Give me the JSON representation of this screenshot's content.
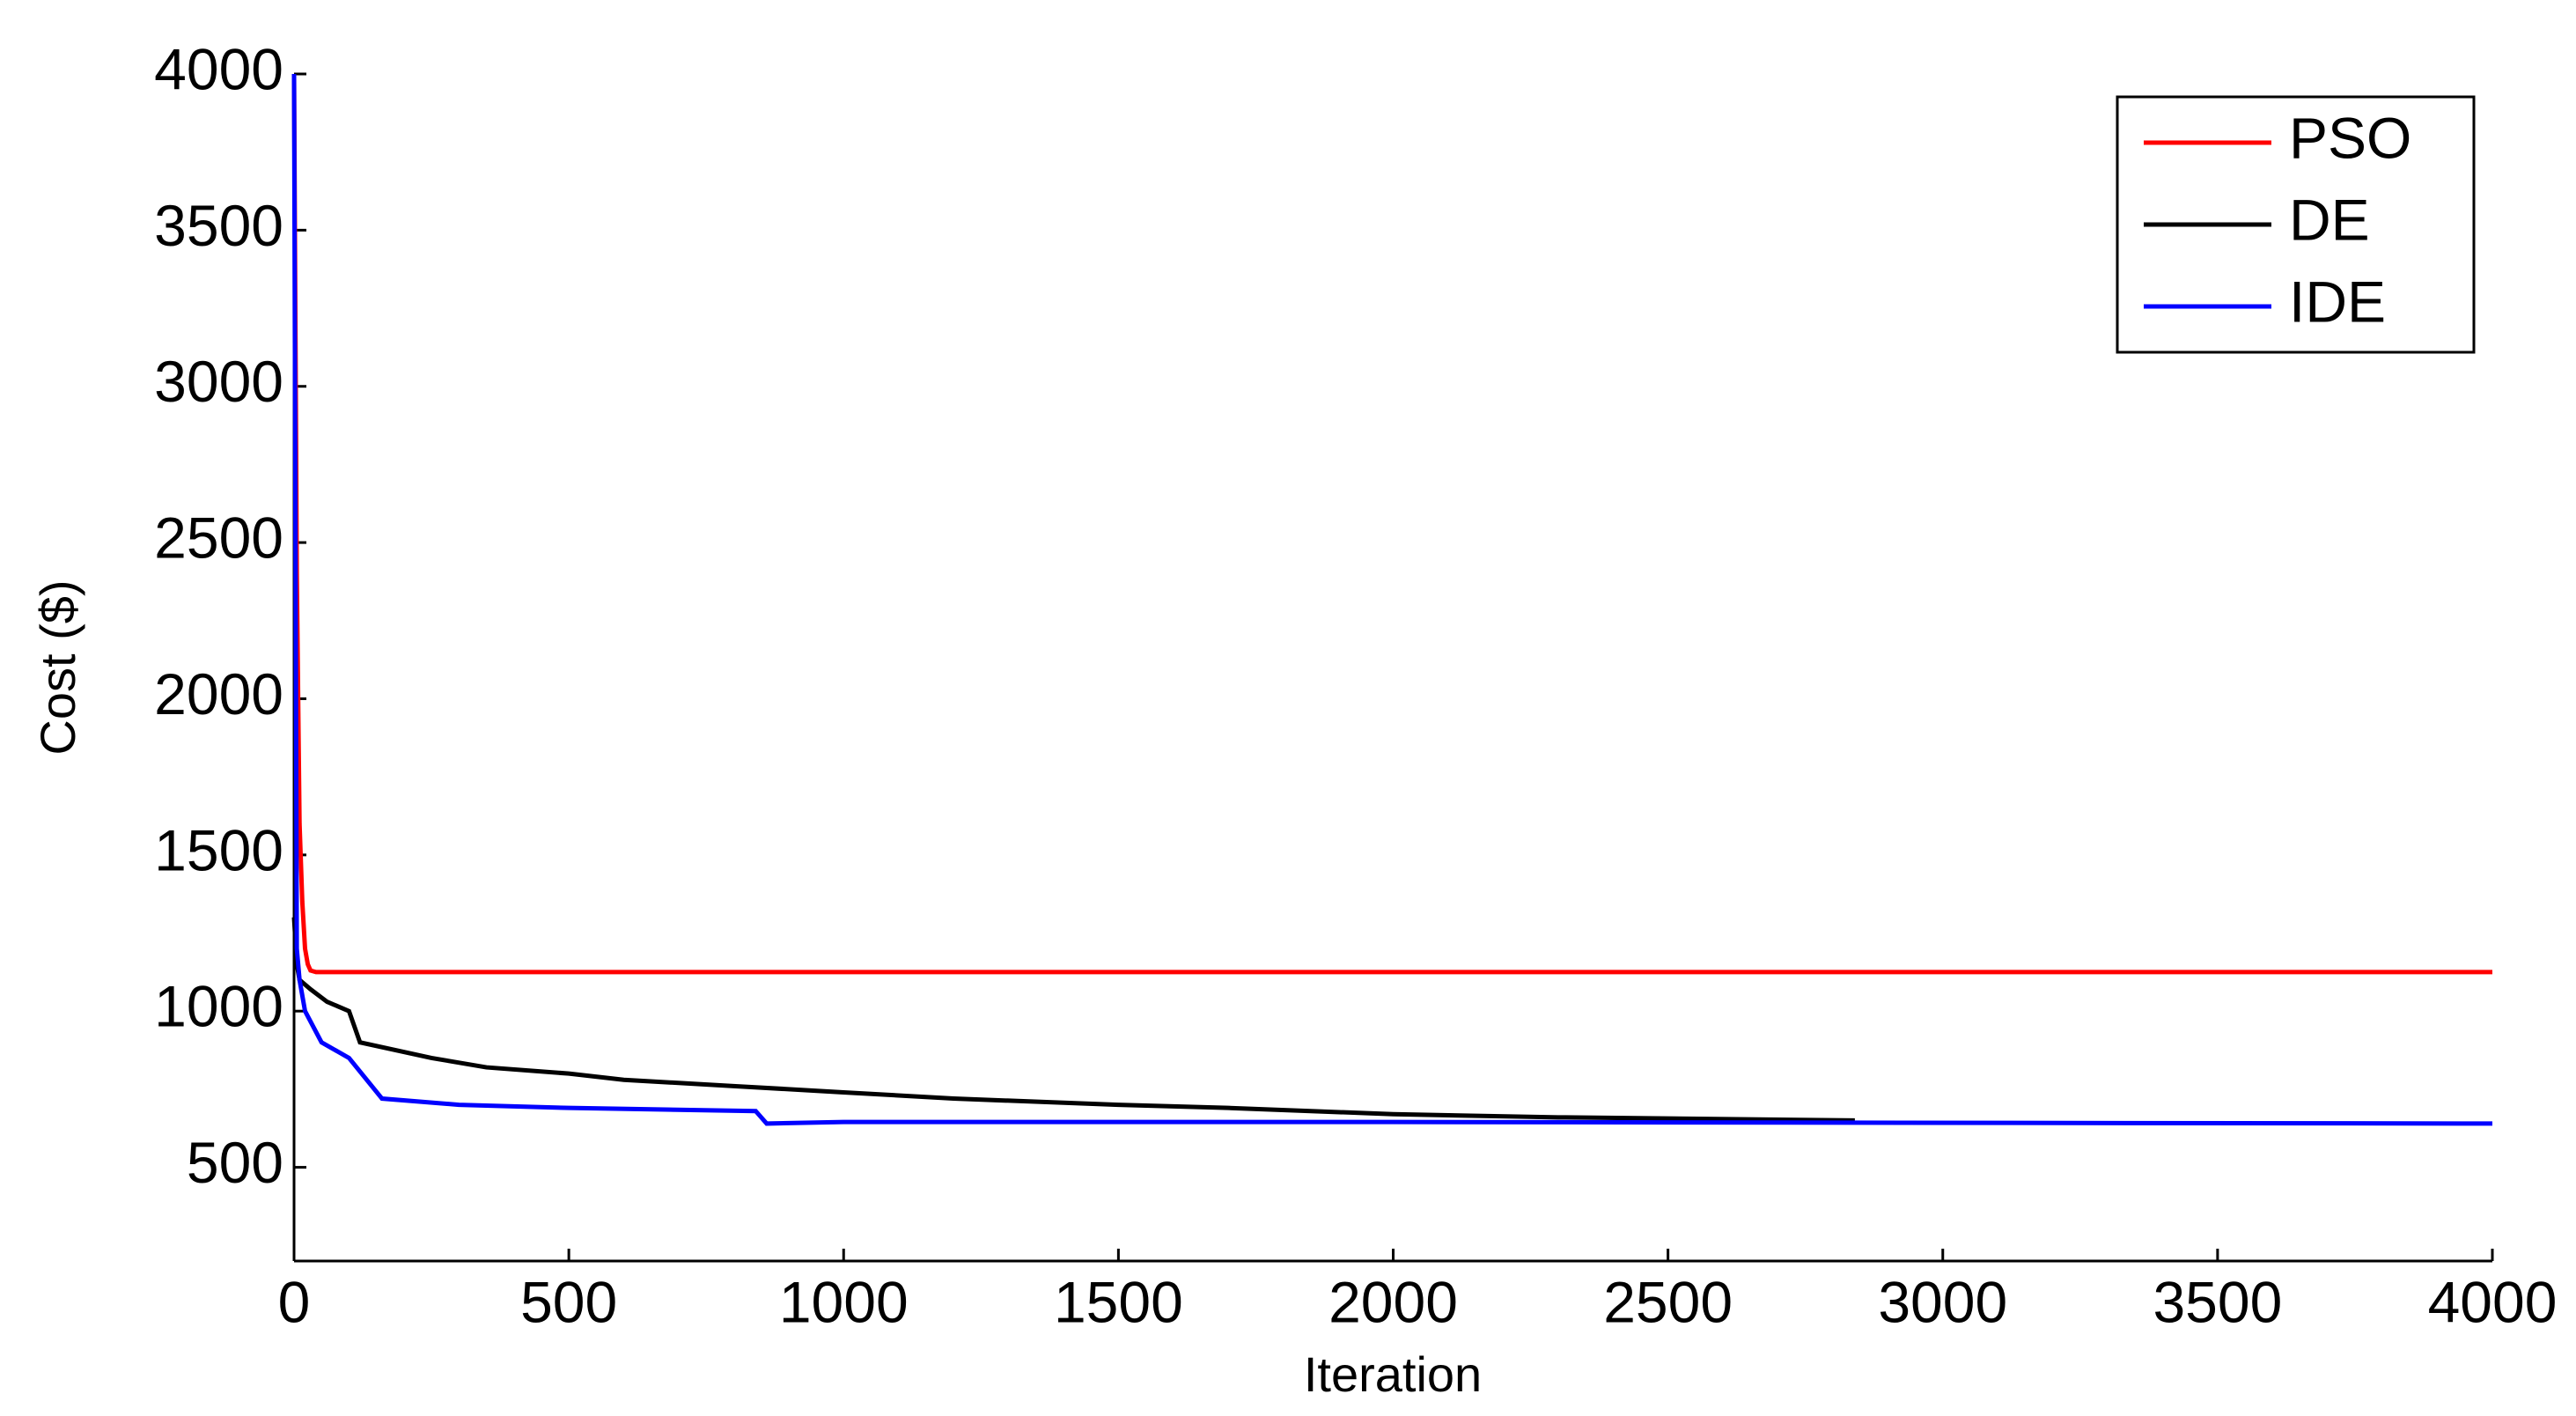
{
  "chart_data": {
    "type": "line",
    "x_label": "Iteration",
    "y_label": "Cost ($)",
    "xlim": [
      0,
      4000
    ],
    "ylim": [
      200,
      4000
    ],
    "xticks": [
      0,
      500,
      1000,
      1500,
      2000,
      2500,
      3000,
      3500,
      4000
    ],
    "yticks": [
      500,
      1000,
      1500,
      2000,
      2500,
      3000,
      3500,
      4000
    ],
    "legend": "top-right",
    "series": [
      {
        "name": "PSO",
        "color": "#ff0000",
        "x": [
          0,
          5,
          10,
          15,
          20,
          25,
          30,
          40,
          4000
        ],
        "values": [
          4000,
          2400,
          1600,
          1350,
          1200,
          1150,
          1130,
          1125,
          1125
        ]
      },
      {
        "name": "DE",
        "color": "#000000",
        "x": [
          0,
          5,
          10,
          30,
          60,
          100,
          120,
          250,
          350,
          500,
          600,
          800,
          1000,
          1200,
          1500,
          1700,
          2000,
          2300,
          2840
        ],
        "values": [
          1300,
          1150,
          1100,
          1070,
          1030,
          1000,
          900,
          850,
          820,
          800,
          780,
          760,
          740,
          720,
          700,
          690,
          670,
          660,
          650
        ]
      },
      {
        "name": "IDE",
        "color": "#0000ff",
        "x": [
          0,
          5,
          10,
          20,
          50,
          100,
          160,
          300,
          500,
          840,
          860,
          1000,
          2000,
          4000
        ],
        "values": [
          4000,
          1200,
          1100,
          1000,
          900,
          850,
          720,
          700,
          690,
          680,
          640,
          645,
          645,
          640
        ]
      }
    ]
  }
}
